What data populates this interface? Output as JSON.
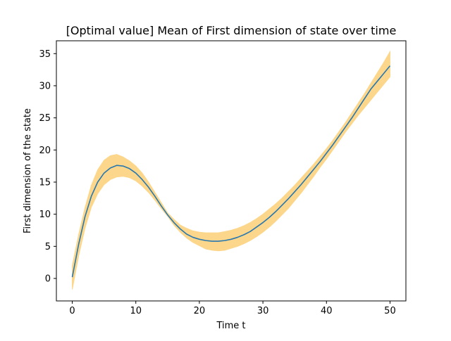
{
  "chart_data": {
    "type": "line",
    "title": "[Optimal value] Mean of First dimension of state over time",
    "xlabel": "Time t",
    "ylabel": "First dimension of the state",
    "xlim": [
      -2.5,
      52.5
    ],
    "ylim": [
      -3.5,
      37.0
    ],
    "x_ticks": [
      0,
      10,
      20,
      30,
      40,
      50
    ],
    "y_ticks": [
      0,
      5,
      10,
      15,
      20,
      25,
      30,
      35
    ],
    "grid": false,
    "legend": "none",
    "colors": {
      "mean_line": "#2878b0",
      "band_fill": "#fcd68a"
    },
    "series": [
      {
        "x": [
          0,
          1,
          2,
          3,
          4,
          5,
          6,
          7,
          8,
          9,
          10,
          11,
          12,
          13,
          14,
          15,
          16,
          17,
          18,
          19,
          20,
          21,
          22,
          23,
          24,
          25,
          26,
          27,
          28,
          29,
          30,
          31,
          32,
          33,
          34,
          35,
          36,
          37,
          38,
          39,
          40,
          41,
          42,
          43,
          44,
          45,
          46,
          47,
          48,
          49,
          50
        ],
        "mean": [
          0.2,
          5.3,
          9.6,
          12.8,
          15.0,
          16.4,
          17.2,
          17.6,
          17.5,
          17.1,
          16.4,
          15.4,
          14.2,
          12.8,
          11.3,
          9.9,
          8.7,
          7.7,
          6.9,
          6.4,
          6.1,
          5.9,
          5.8,
          5.8,
          5.9,
          6.1,
          6.4,
          6.8,
          7.3,
          8.0,
          8.7,
          9.5,
          10.4,
          11.4,
          12.4,
          13.5,
          14.6,
          15.8,
          17.0,
          18.2,
          19.5,
          20.8,
          22.2,
          23.6,
          25.0,
          26.5,
          28.0,
          29.5,
          30.7,
          31.9,
          33.1
        ],
        "upper": [
          2.0,
          6.8,
          11.0,
          14.5,
          16.9,
          18.4,
          19.1,
          19.3,
          18.9,
          18.3,
          17.5,
          16.4,
          15.0,
          13.4,
          11.8,
          10.2,
          9.2,
          8.3,
          7.8,
          7.4,
          7.2,
          7.1,
          7.1,
          7.1,
          7.3,
          7.5,
          7.8,
          8.2,
          8.7,
          9.3,
          10.0,
          10.8,
          11.6,
          12.5,
          13.5,
          14.5,
          15.6,
          16.7,
          17.8,
          19.0,
          20.2,
          21.5,
          22.9,
          24.3,
          25.8,
          27.3,
          28.8,
          30.4,
          32.0,
          33.6,
          35.3
        ],
        "lower": [
          -1.7,
          3.5,
          7.8,
          11.1,
          13.2,
          14.6,
          15.4,
          15.8,
          15.9,
          15.7,
          15.2,
          14.4,
          13.4,
          12.2,
          10.9,
          9.7,
          8.3,
          7.2,
          6.3,
          5.6,
          5.1,
          4.6,
          4.4,
          4.3,
          4.4,
          4.7,
          5.0,
          5.4,
          5.9,
          6.5,
          7.2,
          8.0,
          8.9,
          9.9,
          10.9,
          12.1,
          13.3,
          14.6,
          15.9,
          17.3,
          18.6,
          20.0,
          21.4,
          22.8,
          24.1,
          25.4,
          26.6,
          27.8,
          29.0,
          30.2,
          31.4
        ]
      }
    ]
  }
}
